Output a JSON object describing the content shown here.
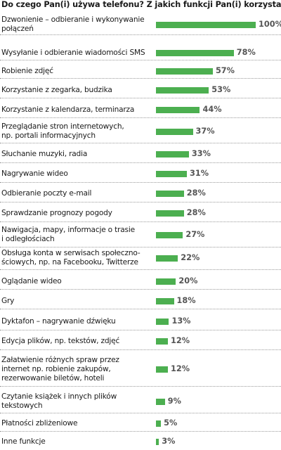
{
  "chart_data": {
    "type": "bar",
    "orientation": "horizontal",
    "title": "Do czego Pan(i) używa telefonu? Z jakich funkcji Pan(i) korzysta?",
    "value_suffix": "%",
    "bar_color": "#4caf50",
    "categories": [
      [
        "Dzwonienie – odbieranie i wykonywanie",
        "połączeń"
      ],
      [
        "Wysyłanie i odbieranie wiadomości SMS"
      ],
      [
        "Robienie zdjęć"
      ],
      [
        "Korzystanie z zegarka, budzika"
      ],
      [
        "Korzystanie z kalendarza, terminarza"
      ],
      [
        "Przeglądanie stron internetowych,",
        "np. portali  informacyjnych"
      ],
      [
        "Słuchanie muzyki, radia"
      ],
      [
        "Nagrywanie wideo"
      ],
      [
        "Odbieranie poczty e-mail"
      ],
      [
        "Sprawdzanie prognozy pogody"
      ],
      [
        "Nawigacja, mapy, informacje o trasie",
        "i odległościach"
      ],
      [
        "Obsługa konta w serwisach społeczno-",
        "ściowych, np. na Facebooku, Twitterze"
      ],
      [
        "Oglądanie wideo"
      ],
      [
        "Gry"
      ],
      [
        "Dyktafon – nagrywanie dźwięku"
      ],
      [
        "Edycja plików, np. tekstów, zdjęć"
      ],
      [
        "Załatwienie różnych spraw przez",
        "internet np. robienie zakupów,",
        "rezerwowanie biletów, hoteli"
      ],
      [
        "Czytanie książek i innych plików",
        "tekstowych"
      ],
      [
        "Płatności zbliżeniowe"
      ],
      [
        "Inne funkcje"
      ]
    ],
    "values": [
      100,
      78,
      57,
      53,
      44,
      37,
      33,
      31,
      28,
      28,
      27,
      22,
      20,
      18,
      13,
      12,
      12,
      9,
      5,
      3
    ]
  }
}
